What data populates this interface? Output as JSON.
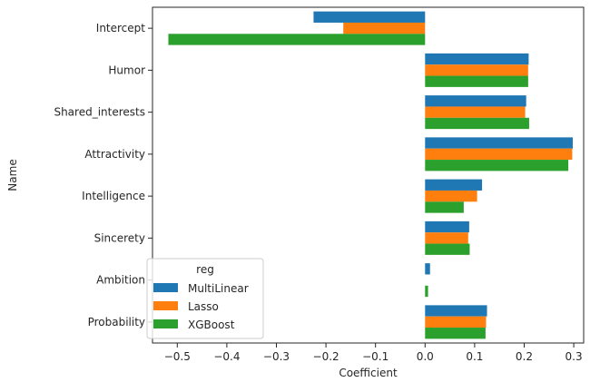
{
  "chart_data": {
    "type": "bar",
    "orientation": "horizontal",
    "categories": [
      "Intercept",
      "Humor",
      "Shared_interests",
      "Attractivity",
      "Intelligence",
      "Sincerety",
      "Ambition",
      "Probability"
    ],
    "series": [
      {
        "name": "MultiLinear",
        "color": "#1f77b4",
        "values": [
          -0.225,
          0.209,
          0.204,
          0.298,
          0.115,
          0.089,
          0.01,
          0.125
        ]
      },
      {
        "name": "Lasso",
        "color": "#ff7f0e",
        "values": [
          -0.165,
          0.208,
          0.202,
          0.297,
          0.105,
          0.087,
          0.0,
          0.123
        ]
      },
      {
        "name": "XGBoost",
        "color": "#2ca02c",
        "values": [
          -0.518,
          0.208,
          0.21,
          0.289,
          0.078,
          0.09,
          0.006,
          0.122
        ]
      }
    ],
    "xlabel": "Coefficient",
    "ylabel": "Name",
    "xlim": [
      -0.55,
      0.32
    ],
    "xticks": [
      -0.5,
      -0.4,
      -0.3,
      -0.2,
      -0.1,
      0.0,
      0.1,
      0.2,
      0.3
    ],
    "xtick_labels": [
      "−0.5",
      "−0.4",
      "−0.3",
      "−0.2",
      "−0.1",
      "0.0",
      "0.1",
      "0.2",
      "0.3"
    ],
    "legend": {
      "title": "reg",
      "placement": "lower-left"
    },
    "grid": false
  }
}
